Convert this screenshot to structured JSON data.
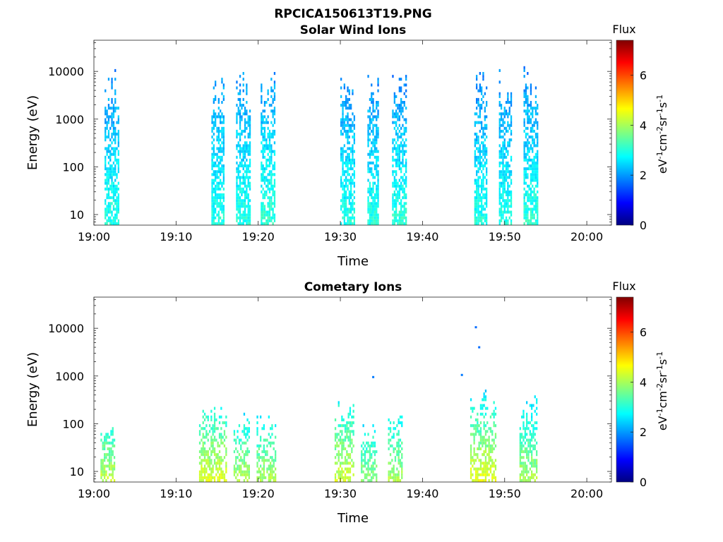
{
  "figure_title": "RPCICA150613T19.PNG",
  "chart_data": [
    {
      "type": "heatmap",
      "title": "Solar Wind Ions",
      "xlabel": "Time",
      "ylabel": "Energy (eV)",
      "x_ticks": [
        "19:00",
        "19:10",
        "19:20",
        "19:30",
        "19:40",
        "19:50",
        "20:00"
      ],
      "x_range_minutes": [
        0,
        63
      ],
      "y_scale": "log",
      "y_ticks": [
        "10",
        "100",
        "1000",
        "10000"
      ],
      "y_range": [
        6,
        45000
      ],
      "colorbar": {
        "label": "Flux",
        "unit": "eV^-1 cm^-2 sr^-1 s^-1",
        "ticks": [
          "0",
          "2",
          "4",
          "6"
        ],
        "range": [
          0,
          7.4
        ],
        "colormap": "jet"
      },
      "series": [
        {
          "t_start": 1.3,
          "t_end": 3.0,
          "e_low": 6,
          "e_high": 15000,
          "flux_high_energy": 1.8,
          "flux_low_energy": 3.0
        },
        {
          "t_start": 14.3,
          "t_end": 15.8,
          "e_low": 6,
          "e_high": 14000,
          "flux_high_energy": 1.9,
          "flux_low_energy": 3.0
        },
        {
          "t_start": 17.3,
          "t_end": 19.0,
          "e_low": 6,
          "e_high": 14000,
          "flux_high_energy": 1.9,
          "flux_low_energy": 3.0
        },
        {
          "t_start": 20.3,
          "t_end": 22.0,
          "e_low": 6,
          "e_high": 15000,
          "flux_high_energy": 1.9,
          "flux_low_energy": 3.1
        },
        {
          "t_start": 30.0,
          "t_end": 31.7,
          "e_low": 6,
          "e_high": 15000,
          "flux_high_energy": 1.8,
          "flux_low_energy": 3.0
        },
        {
          "t_start": 33.3,
          "t_end": 34.7,
          "e_low": 6,
          "e_high": 12000,
          "flux_high_energy": 1.8,
          "flux_low_energy": 3.0
        },
        {
          "t_start": 36.3,
          "t_end": 38.0,
          "e_low": 6,
          "e_high": 15000,
          "flux_high_energy": 1.8,
          "flux_low_energy": 3.1
        },
        {
          "t_start": 46.3,
          "t_end": 47.8,
          "e_low": 6,
          "e_high": 14000,
          "flux_high_energy": 1.8,
          "flux_low_energy": 3.0
        },
        {
          "t_start": 49.3,
          "t_end": 50.8,
          "e_low": 6,
          "e_high": 13000,
          "flux_high_energy": 1.8,
          "flux_low_energy": 3.0
        },
        {
          "t_start": 52.3,
          "t_end": 54.0,
          "e_low": 6,
          "e_high": 14000,
          "flux_high_energy": 1.8,
          "flux_low_energy": 3.1
        }
      ]
    },
    {
      "type": "heatmap",
      "title": "Cometary Ions",
      "xlabel": "Time",
      "ylabel": "Energy (eV)",
      "x_ticks": [
        "19:00",
        "19:10",
        "19:20",
        "19:30",
        "19:40",
        "19:50",
        "20:00"
      ],
      "x_range_minutes": [
        0,
        63
      ],
      "y_scale": "log",
      "y_ticks": [
        "10",
        "100",
        "1000",
        "10000"
      ],
      "y_range": [
        6,
        45000
      ],
      "colorbar": {
        "label": "Flux",
        "unit": "eV^-1 cm^-2 sr^-1 s^-1",
        "ticks": [
          "0",
          "2",
          "4",
          "6"
        ],
        "range": [
          0,
          7.4
        ],
        "colormap": "jet"
      },
      "series": [
        {
          "t_start": 0.8,
          "t_end": 2.6,
          "e_low": 6,
          "e_high": 180,
          "flux_high_energy": 2.6,
          "flux_low_energy": 4.2
        },
        {
          "t_start": 12.8,
          "t_end": 16.0,
          "e_low": 6,
          "e_high": 400,
          "flux_high_energy": 2.6,
          "flux_low_energy": 4.4
        },
        {
          "t_start": 17.0,
          "t_end": 18.8,
          "e_low": 6,
          "e_high": 200,
          "flux_high_energy": 2.6,
          "flux_low_energy": 4.0
        },
        {
          "t_start": 19.8,
          "t_end": 22.0,
          "e_low": 6,
          "e_high": 200,
          "flux_high_energy": 2.6,
          "flux_low_energy": 4.0
        },
        {
          "t_start": 29.3,
          "t_end": 31.5,
          "e_low": 6,
          "e_high": 450,
          "flux_high_energy": 2.6,
          "flux_low_energy": 4.3
        },
        {
          "t_start": 32.5,
          "t_end": 34.5,
          "e_low": 6,
          "e_high": 120,
          "flux_high_energy": 2.6,
          "flux_low_energy": 3.8
        },
        {
          "t_start": 35.8,
          "t_end": 37.5,
          "e_low": 6,
          "e_high": 230,
          "flux_high_energy": 2.6,
          "flux_low_energy": 4.0
        },
        {
          "t_start": 45.8,
          "t_end": 49.0,
          "e_low": 6,
          "e_high": 700,
          "flux_high_energy": 2.4,
          "flux_low_energy": 4.5
        },
        {
          "t_start": 51.8,
          "t_end": 54.0,
          "e_low": 6,
          "e_high": 450,
          "flux_high_energy": 2.4,
          "flux_low_energy": 4.0
        }
      ],
      "isolated_points": [
        {
          "t": 34.0,
          "e": 950,
          "flux": 1.8
        },
        {
          "t": 44.8,
          "e": 1050,
          "flux": 1.8
        },
        {
          "t": 46.5,
          "e": 10500,
          "flux": 1.7
        },
        {
          "t": 46.9,
          "e": 4000,
          "flux": 1.7
        }
      ]
    }
  ]
}
